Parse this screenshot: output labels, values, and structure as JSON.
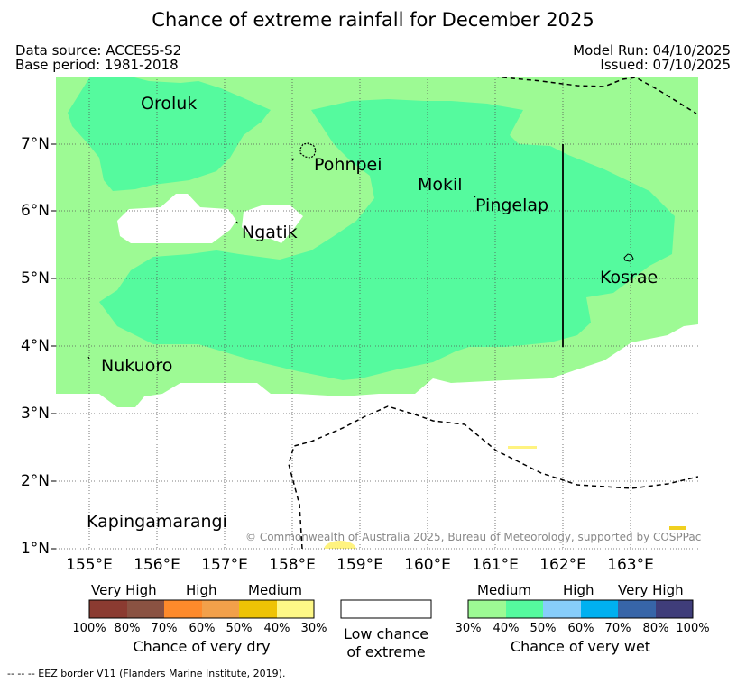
{
  "title": "Chance of extreme rainfall for December 2025",
  "header": {
    "data_source": "Data source: ACCESS-S2",
    "base_period": "Base period: 1981-2018",
    "model_run": "Model Run: 04/10/2025",
    "issued": "Issued: 07/10/2025"
  },
  "map": {
    "lon_ticks": [
      "155°E",
      "156°E",
      "157°E",
      "158°E",
      "159°E",
      "160°E",
      "161°E",
      "162°E",
      "163°E"
    ],
    "lat_ticks": [
      "7°N",
      "6°N",
      "5°N",
      "4°N",
      "3°N",
      "2°N",
      "1°N"
    ],
    "places": {
      "oroluk": "Oroluk",
      "pohnpei": "Pohnpei",
      "mokil": "Mokil",
      "pingelap": "Pingelap",
      "ngatik": "Ngatik",
      "kosrae": "Kosrae",
      "nukuoro": "Nukuoro",
      "kapingamarangi": "Kapingamarangi"
    },
    "copyright": "© Commonwealth of Australia 2025, Bureau of Meteorology, supported by COSPPac",
    "colors": {
      "wet_medium": "#9dfa94",
      "wet_40_50": "#55fa9e",
      "yellow": "#fff380",
      "low": "#ffffff"
    }
  },
  "legend": {
    "dry": {
      "headers": [
        "Very High",
        "High",
        "Medium"
      ],
      "percentages": [
        "100%",
        "80%",
        "70%",
        "60%",
        "50%",
        "40%",
        "30%"
      ],
      "colors": [
        "#8b3b31",
        "#8a5242",
        "#fe8a2b",
        "#f2a04a",
        "#eec305",
        "#fef887"
      ],
      "title": "Chance of very dry"
    },
    "neutral": {
      "line1": "Low chance",
      "line2": "of extreme"
    },
    "wet": {
      "headers": [
        "Medium",
        "High",
        "Very High"
      ],
      "percentages": [
        "30%",
        "40%",
        "50%",
        "60%",
        "70%",
        "80%",
        "100%"
      ],
      "colors": [
        "#9dfa94",
        "#55fa9e",
        "#87cdfa",
        "#00b0f0",
        "#3765a8",
        "#3f3d7a"
      ],
      "title": "Chance of very wet"
    }
  },
  "footnote": "--  --  -- EEZ border V11 (Flanders Marine Institute, 2019)."
}
